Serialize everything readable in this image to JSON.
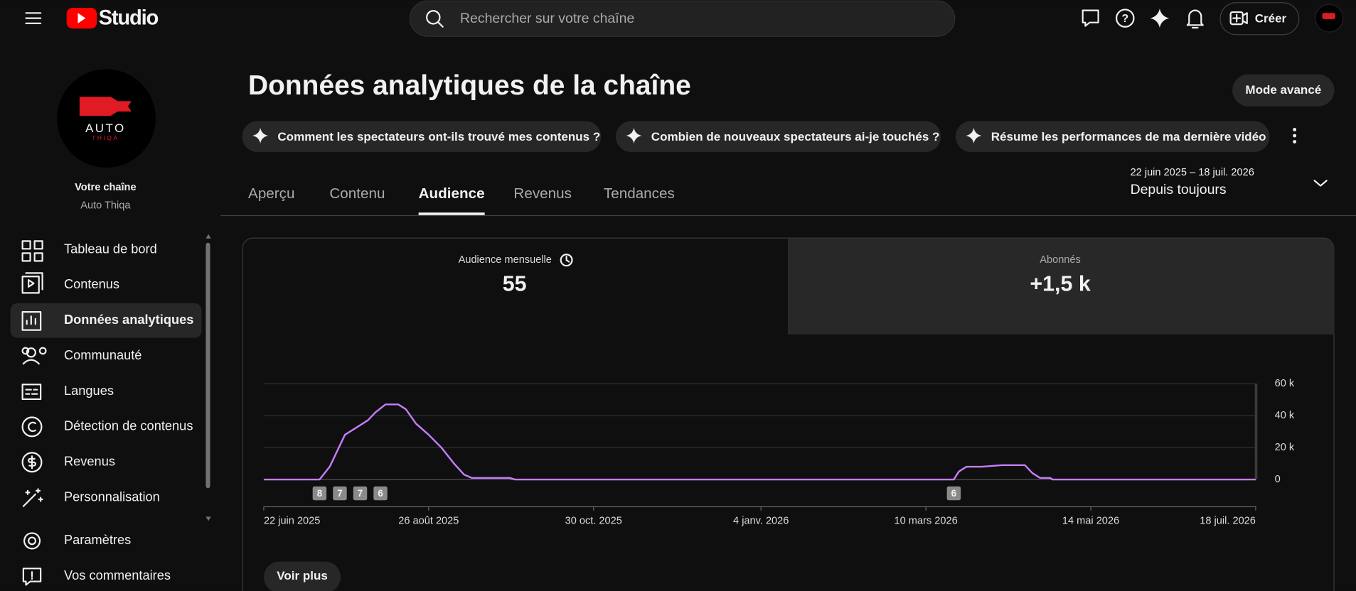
{
  "header": {
    "logo": "Studio",
    "search_placeholder": "Rechercher sur votre chaîne",
    "create": "Créer"
  },
  "channel": {
    "avatar_text": "AUTO",
    "avatar_subtext": "THIQA",
    "label": "Votre chaîne",
    "name": "Auto Thiqa"
  },
  "nav": [
    "Tableau de bord",
    "Contenus",
    "Données analytiques",
    "Communauté",
    "Langues",
    "Détection de contenus",
    "Revenus",
    "Personnalisation"
  ],
  "nav_bottom": [
    "Paramètres",
    "Vos commentaires"
  ],
  "page": {
    "title": "Données analytiques de la chaîne",
    "advanced_mode": "Mode avancé",
    "chips": [
      "Comment les spectateurs ont-ils trouvé mes contenus ?",
      "Combien de nouveaux spectateurs ai-je touchés ?",
      "Résume les performances de ma dernière vidéo"
    ],
    "tabs": [
      "Aperçu",
      "Contenu",
      "Audience",
      "Revenus",
      "Tendances"
    ],
    "date_range": "22 juin 2025 – 18 juil. 2026",
    "period": "Depuis toujours"
  },
  "metrics": [
    {
      "label": "Audience mensuelle",
      "value": 55
    },
    {
      "label": "Abonnés",
      "value": "+1,5 k"
    }
  ],
  "see_more": "Voir plus",
  "chart_data": {
    "type": "line",
    "color": "#c67cff",
    "grid": true,
    "x": [
      "2025-06-22",
      "2025-07-14",
      "2025-07-18",
      "2025-07-21",
      "2025-07-24",
      "2025-07-29",
      "2025-08-02",
      "2025-08-05",
      "2025-08-09",
      "2025-08-14",
      "2025-08-17",
      "2025-08-21",
      "2025-08-26",
      "2025-08-31",
      "2025-09-05",
      "2025-09-09",
      "2025-09-12",
      "2025-09-27",
      "2025-09-29",
      "2026-03-21",
      "2026-03-23",
      "2026-03-26",
      "2026-04-01",
      "2026-04-09",
      "2026-04-18",
      "2026-04-21",
      "2026-04-24",
      "2026-04-28",
      "2026-04-29",
      "2026-07-18"
    ],
    "values": [
      0,
      0,
      8000,
      18000,
      28000,
      33000,
      37000,
      42000,
      47000,
      47000,
      44000,
      35000,
      28000,
      20000,
      10000,
      3000,
      1000,
      1000,
      0,
      0,
      5000,
      8000,
      8000,
      9000,
      9000,
      4000,
      1000,
      1000,
      0,
      0
    ],
    "xlim": [
      "2025-06-22",
      "2026-07-18"
    ],
    "xticks": [
      {
        "value": "2025-06-22",
        "label": "22 juin 2025"
      },
      {
        "value": "2025-08-26",
        "label": "26 août 2025"
      },
      {
        "value": "2025-10-30",
        "label": "30 oct. 2025"
      },
      {
        "value": "2026-01-04",
        "label": "4 janv. 2026"
      },
      {
        "value": "2026-03-10",
        "label": "10 mars 2026"
      },
      {
        "value": "2026-05-14",
        "label": "14 mai 2026"
      },
      {
        "value": "2026-07-18",
        "label": "18 juil. 2026"
      }
    ],
    "ylim": [
      0,
      60000
    ],
    "yticks": [
      0,
      {
        "value": 20000,
        "label": "20 k"
      },
      {
        "value": 40000,
        "label": "40 k"
      },
      {
        "value": 60000,
        "label": "60 k"
      }
    ],
    "markers": [
      {
        "x": "2025-07-14",
        "count": 8
      },
      {
        "x": "2025-07-22",
        "count": 7
      },
      {
        "x": "2025-07-30",
        "count": 7
      },
      {
        "x": "2025-08-07",
        "count": 6
      },
      {
        "x": "2026-03-21",
        "count": 6
      }
    ]
  }
}
